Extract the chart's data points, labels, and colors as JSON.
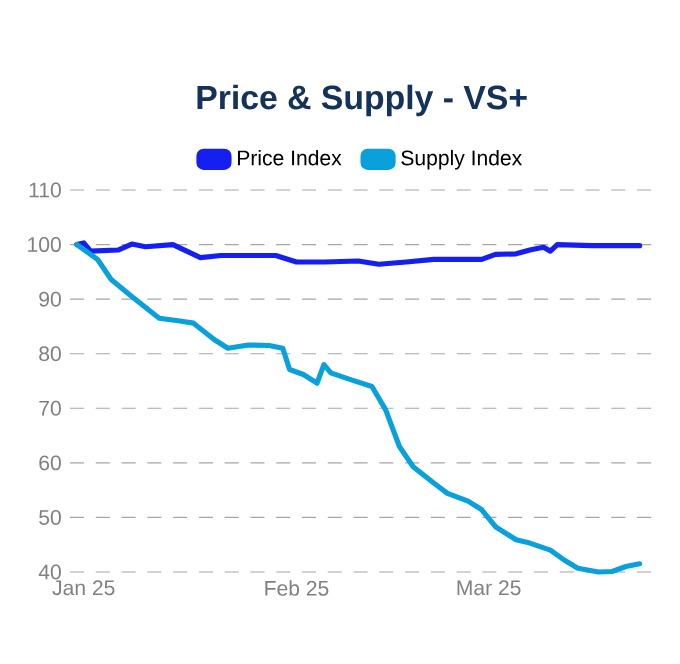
{
  "chart_data": {
    "type": "line",
    "title": "Price & Supply - VS+",
    "legend": "top",
    "grid": "y",
    "line_style": "solid",
    "marker": "none",
    "xlim": [
      "2024-12-30",
      "2025-03-25"
    ],
    "xticks": [
      {
        "value": "2025-01-01",
        "label": "Jan 25"
      },
      {
        "value": "2025-02-01",
        "label": "Feb 25"
      },
      {
        "value": "2025-03-01",
        "label": "Mar 25"
      }
    ],
    "ylim": [
      40,
      110
    ],
    "yticks": [
      40,
      50,
      60,
      70,
      80,
      90,
      100,
      110
    ],
    "series": [
      {
        "name": "Price Index",
        "color": "#1520f0",
        "x": [
          "2024-12-31",
          "2025-01-01",
          "2025-01-02",
          "2025-01-06",
          "2025-01-08",
          "2025-01-10",
          "2025-01-14",
          "2025-01-16",
          "2025-01-18",
          "2025-01-21",
          "2025-01-29",
          "2025-02-01",
          "2025-02-05",
          "2025-02-10",
          "2025-02-13",
          "2025-02-17",
          "2025-02-21",
          "2025-02-26",
          "2025-02-28",
          "2025-03-02",
          "2025-03-05",
          "2025-03-07",
          "2025-03-09",
          "2025-03-10",
          "2025-03-11",
          "2025-03-16",
          "2025-03-23"
        ],
        "values": [
          100,
          100.3,
          98.8,
          99,
          100.1,
          99.6,
          100,
          98.8,
          97.6,
          98,
          98,
          96.8,
          96.8,
          97,
          96.4,
          96.8,
          97.3,
          97.3,
          97.3,
          98.2,
          98.3,
          99,
          99.5,
          98.8,
          100,
          99.8,
          99.8
        ]
      },
      {
        "name": "Supply Index",
        "color": "#0aa0dc",
        "x": [
          "2024-12-31",
          "2025-01-03",
          "2025-01-05",
          "2025-01-08",
          "2025-01-12",
          "2025-01-15",
          "2025-01-17",
          "2025-01-20",
          "2025-01-22",
          "2025-01-25",
          "2025-01-28",
          "2025-01-30",
          "2025-01-31",
          "2025-02-02",
          "2025-02-04",
          "2025-02-05",
          "2025-02-06",
          "2025-02-09",
          "2025-02-12",
          "2025-02-14",
          "2025-02-16",
          "2025-02-18",
          "2025-02-21",
          "2025-02-23",
          "2025-02-26",
          "2025-02-28",
          "2025-03-02",
          "2025-03-05",
          "2025-03-07",
          "2025-03-10",
          "2025-03-12",
          "2025-03-14",
          "2025-03-17",
          "2025-03-19",
          "2025-03-21",
          "2025-03-23"
        ],
        "values": [
          100,
          97.3,
          93.6,
          90.5,
          86.5,
          86,
          85.6,
          82.6,
          81,
          81.6,
          81.5,
          81,
          77.1,
          76.2,
          74.6,
          78,
          76.5,
          75.2,
          74,
          69.7,
          63,
          59.3,
          56.3,
          54.4,
          53,
          51.4,
          48.3,
          45.9,
          45.3,
          44,
          42.2,
          40.7,
          40,
          40.1,
          41,
          41.5
        ]
      }
    ]
  }
}
